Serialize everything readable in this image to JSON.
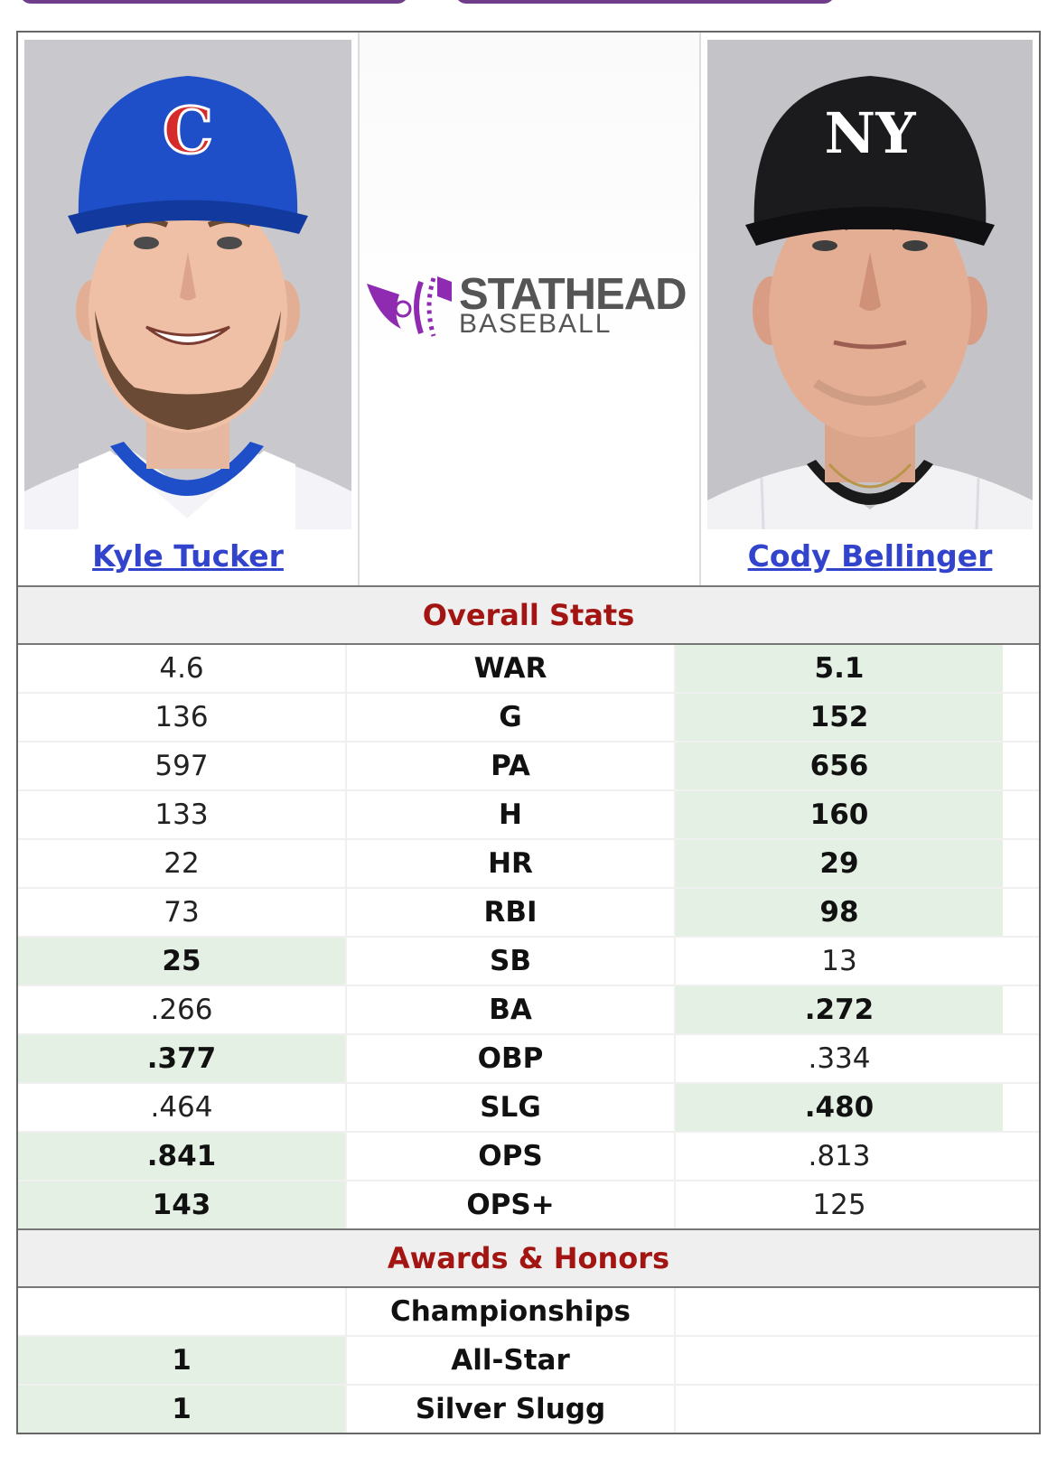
{
  "players": {
    "left": {
      "name": "Kyle Tucker",
      "cap_color": "#1e4fc9",
      "cap_logo_letter": "C"
    },
    "right": {
      "name": "Cody Bellinger",
      "cap_color": "#1a1a1a",
      "cap_logo_letter": "NY"
    }
  },
  "logo": {
    "line1": "STATHEAD",
    "line2": "BASEBALL",
    "accent": "#8e2bb0"
  },
  "sections": {
    "overall": "Overall Stats",
    "awards": "Awards & Honors"
  },
  "stats": [
    {
      "label": "WAR",
      "left": "4.6",
      "right": "5.1",
      "winner": "right"
    },
    {
      "label": "G",
      "left": "136",
      "right": "152",
      "winner": "right"
    },
    {
      "label": "PA",
      "left": "597",
      "right": "656",
      "winner": "right"
    },
    {
      "label": "H",
      "left": "133",
      "right": "160",
      "winner": "right"
    },
    {
      "label": "HR",
      "left": "22",
      "right": "29",
      "winner": "right"
    },
    {
      "label": "RBI",
      "left": "73",
      "right": "98",
      "winner": "right"
    },
    {
      "label": "SB",
      "left": "25",
      "right": "13",
      "winner": "left"
    },
    {
      "label": "BA",
      "left": ".266",
      "right": ".272",
      "winner": "right"
    },
    {
      "label": "OBP",
      "left": ".377",
      "right": ".334",
      "winner": "left"
    },
    {
      "label": "SLG",
      "left": ".464",
      "right": ".480",
      "winner": "right"
    },
    {
      "label": "OPS",
      "left": ".841",
      "right": ".813",
      "winner": "left"
    },
    {
      "label": "OPS+",
      "left": "143",
      "right": "125",
      "winner": "left"
    }
  ],
  "awards": [
    {
      "label": "Championships",
      "left": "",
      "right": "",
      "winner": ""
    },
    {
      "label": "All-Star",
      "left": "1",
      "right": "",
      "winner": "left"
    },
    {
      "label": "Silver Slugg",
      "left": "1",
      "right": "",
      "winner": "left"
    }
  ],
  "colors": {
    "win_bg": "#e3f0e3",
    "section_title": "#a31512",
    "link": "#3344cc"
  }
}
